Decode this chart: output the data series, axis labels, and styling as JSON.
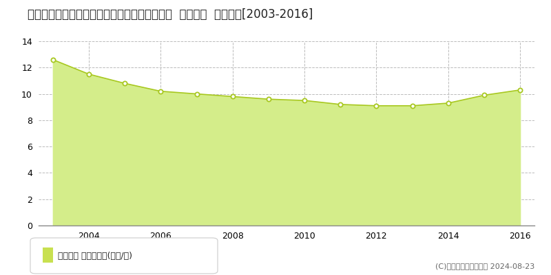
{
  "title": "宮城県黒川郡富谷町とちの木２丁目９番３２４  地価公示  地価推移[2003-2016]",
  "years": [
    2003,
    2004,
    2005,
    2006,
    2007,
    2008,
    2009,
    2010,
    2011,
    2012,
    2013,
    2014,
    2015,
    2016
  ],
  "values": [
    12.6,
    11.5,
    10.8,
    10.2,
    10.0,
    9.8,
    9.6,
    9.5,
    9.2,
    9.1,
    9.1,
    9.3,
    9.9,
    10.3
  ],
  "ylim": [
    0,
    14
  ],
  "yticks": [
    0,
    2,
    4,
    6,
    8,
    10,
    12,
    14
  ],
  "fill_color": "#d4ed8a",
  "line_color": "#a8c820",
  "marker_facecolor": "#ffffff",
  "marker_edgecolor": "#a8c820",
  "grid_color": "#bbbbbb",
  "bg_color": "#ffffff",
  "plot_bg_color": "#ffffff",
  "title_fontsize": 12,
  "tick_fontsize": 9,
  "legend_label": "地価公示 平均坪単価(万円/坪)",
  "legend_square_color": "#c8e050",
  "copyright_text": "(C)土地価格ドットコム 2024-08-23",
  "copyright_fontsize": 8,
  "x_label_years": [
    2004,
    2006,
    2008,
    2010,
    2012,
    2014,
    2016
  ],
  "xlim_left": 2002.6,
  "xlim_right": 2016.4
}
